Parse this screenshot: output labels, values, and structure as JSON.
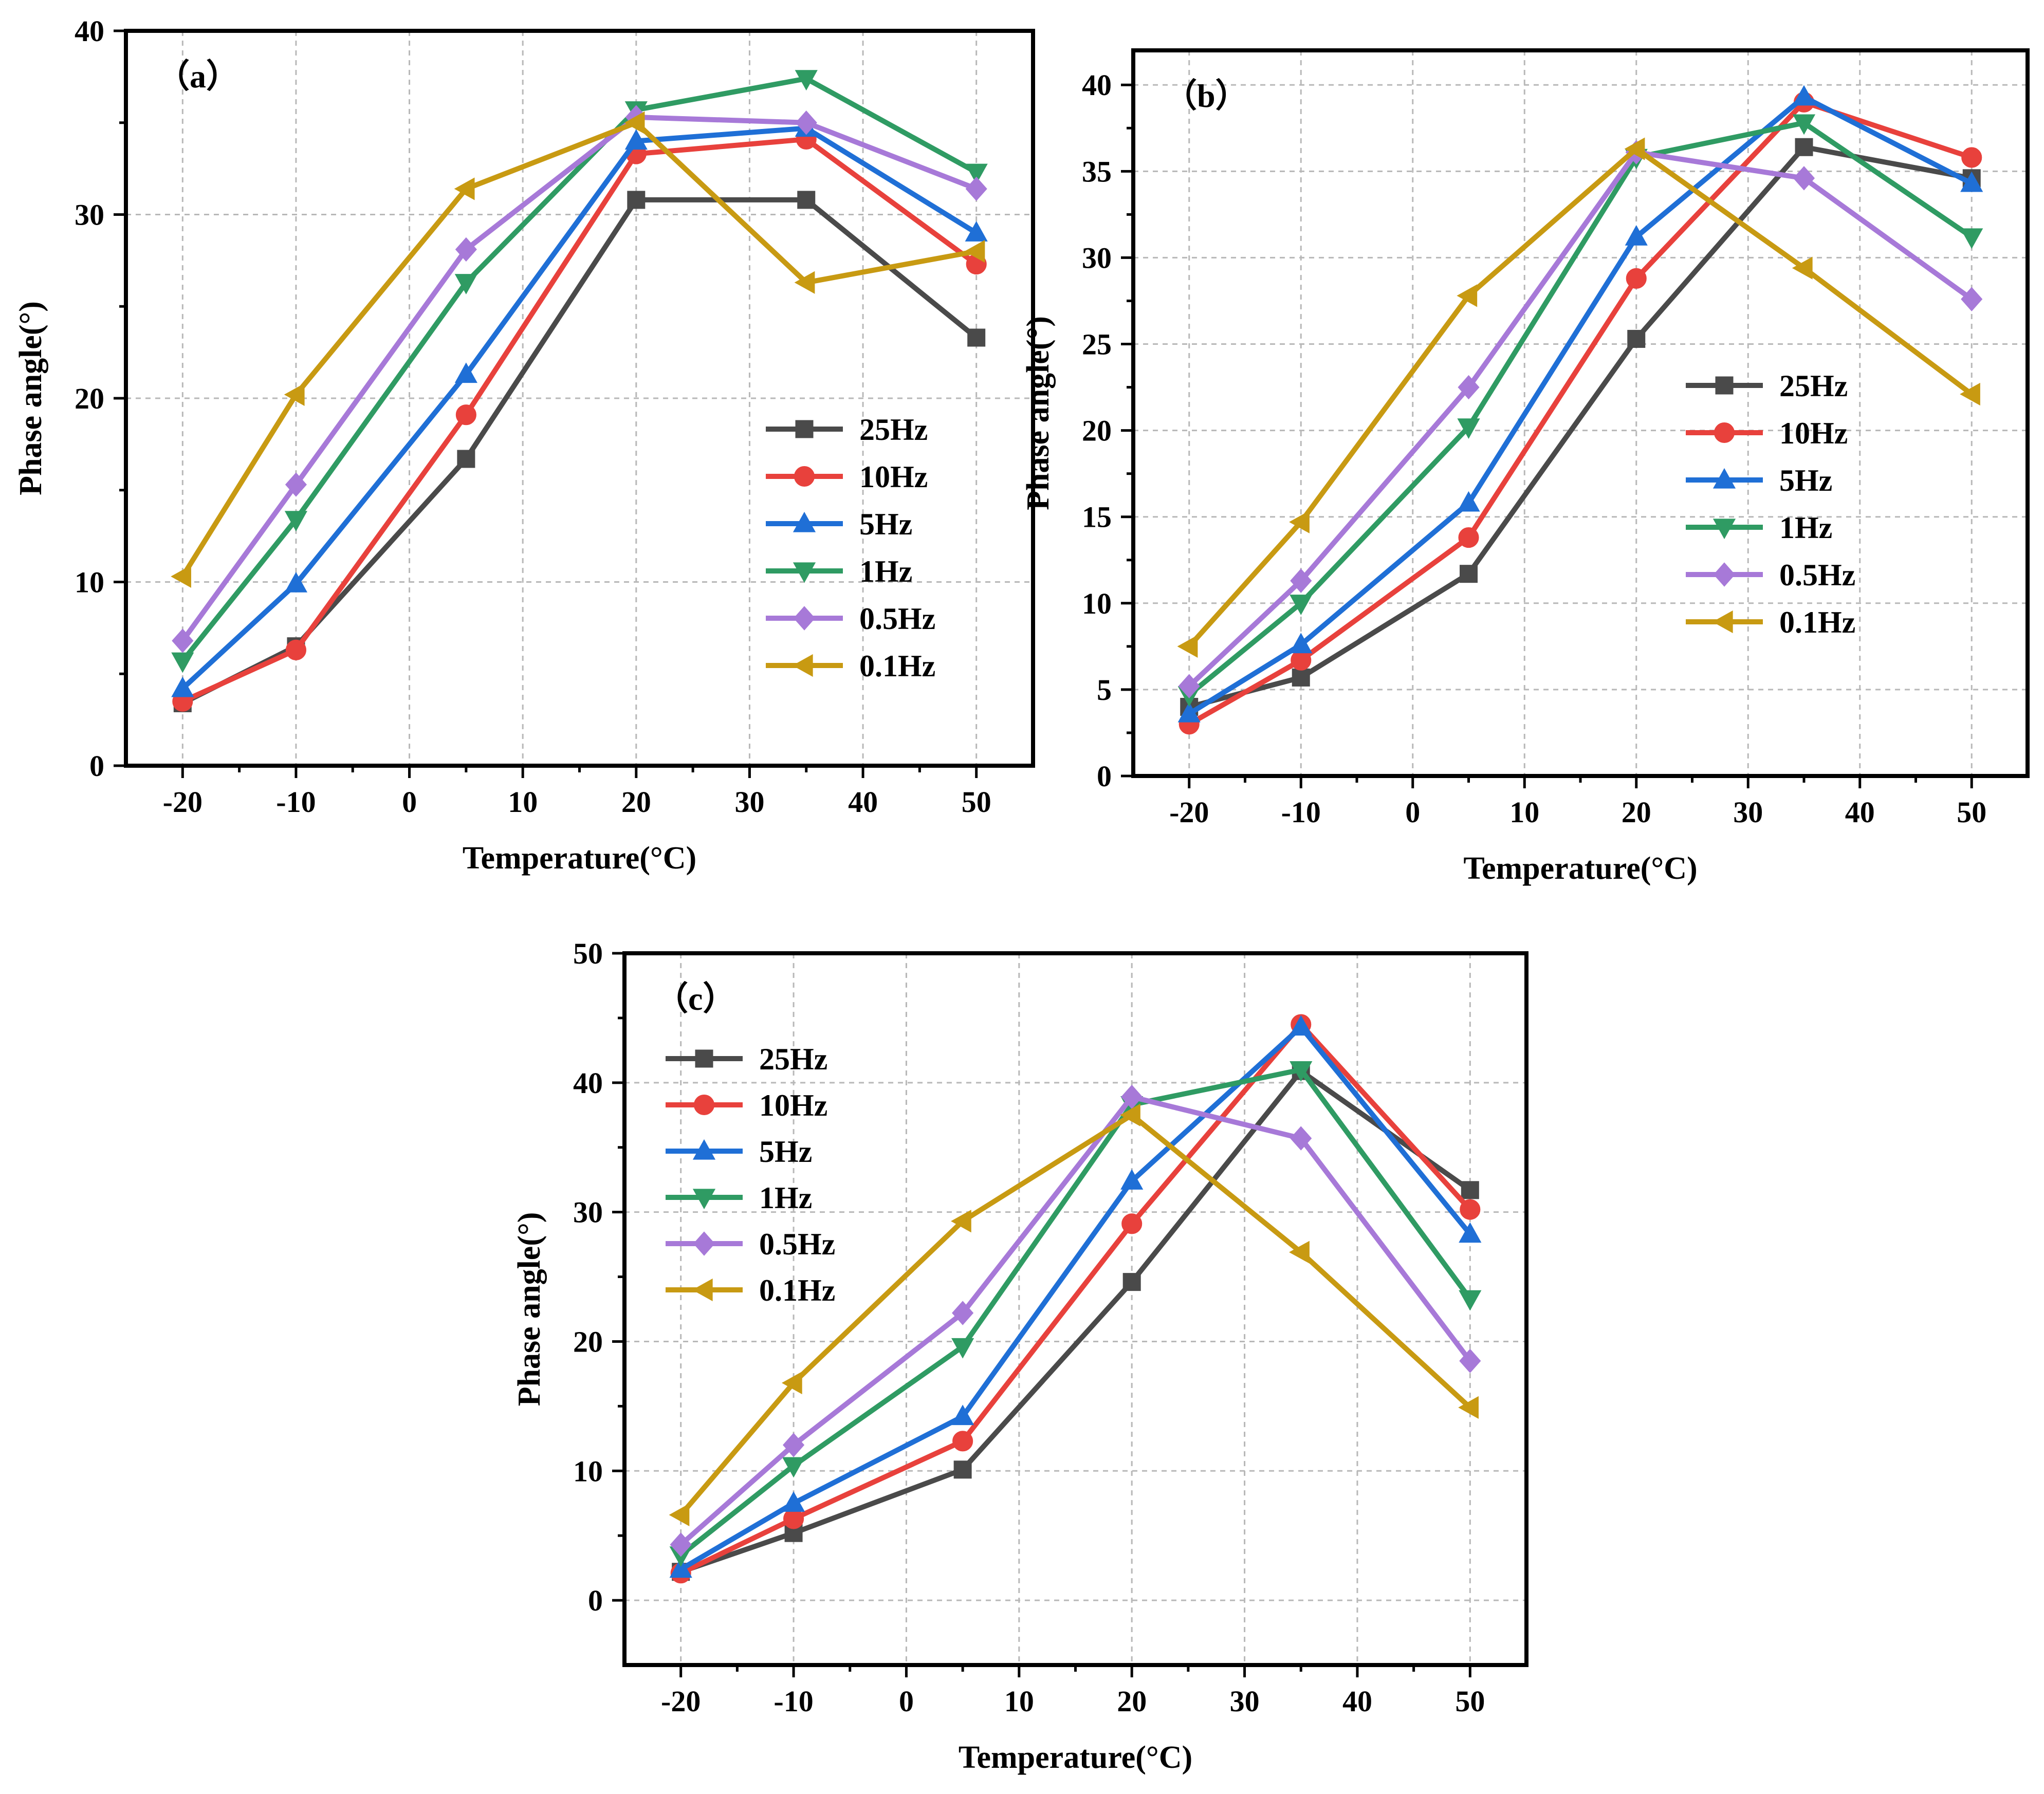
{
  "figure": {
    "series_styles": [
      {
        "name": "25Hz",
        "color": "#4a4a4a",
        "marker": "square"
      },
      {
        "name": "10Hz",
        "color": "#e8413c",
        "marker": "circle"
      },
      {
        "name": "5Hz",
        "color": "#1f6fd6",
        "marker": "triangle-up"
      },
      {
        "name": "1Hz",
        "color": "#2f9b63",
        "marker": "triangle-down"
      },
      {
        "name": "0.5Hz",
        "color": "#a779d8",
        "marker": "diamond"
      },
      {
        "name": "0.1Hz",
        "color": "#c89a12",
        "marker": "triangle-left"
      }
    ]
  },
  "chart_data": [
    {
      "id": "a",
      "type": "line",
      "panel_label": "（a）",
      "xlabel": "Temperature(°C)",
      "ylabel": "Phase angle(°)",
      "x": [
        -20,
        -10,
        5,
        20,
        35,
        50
      ],
      "xlim": [
        -25,
        55
      ],
      "ylim": [
        0,
        40
      ],
      "xticks": [
        -20,
        -10,
        0,
        10,
        20,
        30,
        40,
        50
      ],
      "yticks": [
        0,
        10,
        20,
        30,
        40
      ],
      "grid": true,
      "legend_position": "center-right",
      "series": [
        {
          "name": "25Hz",
          "values": [
            3.4,
            6.5,
            16.7,
            30.8,
            30.8,
            23.3
          ]
        },
        {
          "name": "10Hz",
          "values": [
            3.5,
            6.3,
            19.1,
            33.3,
            34.1,
            27.3
          ]
        },
        {
          "name": "5Hz",
          "values": [
            4.2,
            9.9,
            21.3,
            34.0,
            34.7,
            29.0
          ]
        },
        {
          "name": "1Hz",
          "values": [
            5.7,
            13.4,
            26.3,
            35.7,
            37.4,
            32.3
          ]
        },
        {
          "name": "0.5Hz",
          "values": [
            6.8,
            15.3,
            28.1,
            35.3,
            35.0,
            31.4
          ]
        },
        {
          "name": "0.1Hz",
          "values": [
            10.3,
            20.2,
            31.4,
            35.0,
            26.3,
            28.0
          ]
        }
      ]
    },
    {
      "id": "b",
      "type": "line",
      "panel_label": "（b）",
      "xlabel": "Temperature(°C)",
      "ylabel": "Phase angle(°)",
      "x": [
        -20,
        -10,
        5,
        20,
        35,
        50
      ],
      "xlim": [
        -25,
        55
      ],
      "ylim": [
        0,
        42
      ],
      "xticks": [
        -20,
        -10,
        0,
        10,
        20,
        30,
        40,
        50
      ],
      "yticks": [
        0,
        5,
        10,
        15,
        20,
        25,
        30,
        35,
        40
      ],
      "grid": true,
      "legend_position": "center-right",
      "series": [
        {
          "name": "25Hz",
          "values": [
            4.0,
            5.7,
            11.7,
            25.3,
            36.4,
            34.6
          ]
        },
        {
          "name": "10Hz",
          "values": [
            3.0,
            6.7,
            13.8,
            28.8,
            39.0,
            35.8
          ]
        },
        {
          "name": "5Hz",
          "values": [
            3.6,
            7.6,
            15.8,
            31.2,
            39.3,
            34.3
          ]
        },
        {
          "name": "1Hz",
          "values": [
            4.7,
            10.0,
            20.2,
            35.8,
            37.8,
            31.2
          ]
        },
        {
          "name": "0.5Hz",
          "values": [
            5.2,
            11.3,
            22.5,
            36.1,
            34.6,
            27.6
          ]
        },
        {
          "name": "0.1Hz",
          "values": [
            7.5,
            14.7,
            27.8,
            36.3,
            29.4,
            22.1
          ]
        }
      ]
    },
    {
      "id": "c",
      "type": "line",
      "panel_label": "（c）",
      "xlabel": "Temperature(°C)",
      "ylabel": "Phase angle(°)",
      "x": [
        -20,
        -10,
        5,
        20,
        35,
        50
      ],
      "xlim": [
        -25,
        55
      ],
      "ylim": [
        -5,
        50
      ],
      "xticks": [
        -20,
        -10,
        0,
        10,
        20,
        30,
        40,
        50
      ],
      "yticks": [
        0,
        10,
        20,
        30,
        40,
        50
      ],
      "grid": true,
      "legend_position": "top-left",
      "series": [
        {
          "name": "25Hz",
          "values": [
            2.2,
            5.2,
            10.1,
            24.6,
            40.9,
            31.7
          ]
        },
        {
          "name": "10Hz",
          "values": [
            2.1,
            6.3,
            12.3,
            29.1,
            44.5,
            30.2
          ]
        },
        {
          "name": "5Hz",
          "values": [
            2.4,
            7.5,
            14.2,
            32.4,
            44.3,
            28.3
          ]
        },
        {
          "name": "1Hz",
          "values": [
            3.5,
            10.4,
            19.6,
            38.3,
            41.0,
            23.3
          ]
        },
        {
          "name": "0.5Hz",
          "values": [
            4.3,
            12.0,
            22.2,
            38.9,
            35.7,
            18.5
          ]
        },
        {
          "name": "0.1Hz",
          "values": [
            6.6,
            16.8,
            29.3,
            37.5,
            26.9,
            14.9
          ]
        }
      ]
    }
  ]
}
